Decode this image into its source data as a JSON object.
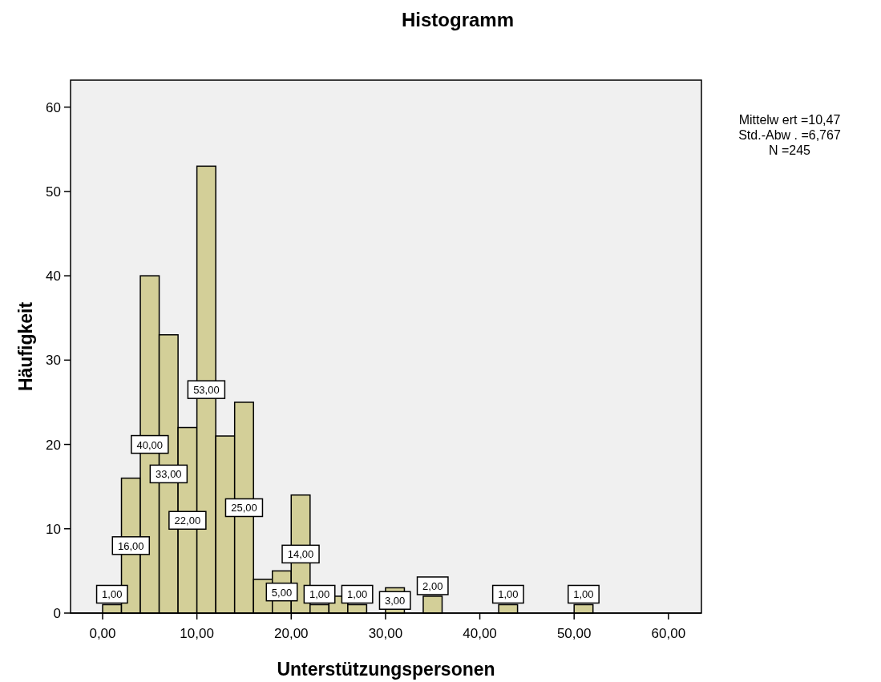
{
  "chart_data": {
    "type": "histogram",
    "title": "Histogramm",
    "xlabel": "Unterstützungspersonen",
    "ylabel": "Häufigkeit",
    "annotations": [
      "Mittelw ert =10,47",
      "Std.-Abw . =6,767",
      "N =245"
    ],
    "bins": [
      0,
      2,
      4,
      6,
      8,
      10,
      12,
      14,
      16,
      18,
      20,
      22,
      24,
      26,
      28,
      30,
      32,
      34,
      36,
      38,
      40,
      42,
      44,
      46,
      48,
      50,
      52
    ],
    "values": [
      1,
      16,
      40,
      33,
      22,
      53,
      21,
      25,
      4,
      5,
      14,
      1,
      2,
      1,
      0,
      3,
      0,
      2,
      0,
      0,
      0,
      1,
      0,
      0,
      0,
      1
    ],
    "value_labels": [
      "1,00",
      "16,00",
      "40,00",
      "33,00",
      "22,00",
      "53,00",
      null,
      "25,00",
      null,
      "5,00",
      "14,00",
      "1,00",
      null,
      "1,00",
      null,
      "3,00",
      null,
      "2,00",
      null,
      null,
      null,
      "1,00",
      null,
      null,
      null,
      "1,00"
    ],
    "color": "#d3cf98",
    "xlim": [
      -3.4,
      63.5
    ],
    "ylim": [
      0,
      63.2
    ],
    "xticks": [
      {
        "value": 0,
        "label": "0,00"
      },
      {
        "value": 10,
        "label": "10,00"
      },
      {
        "value": 20,
        "label": "20,00"
      },
      {
        "value": 30,
        "label": "30,00"
      },
      {
        "value": 40,
        "label": "40,00"
      },
      {
        "value": 50,
        "label": "50,00"
      },
      {
        "value": 60,
        "label": "60,00"
      }
    ],
    "yticks": [
      0,
      10,
      20,
      30,
      40,
      50,
      60
    ],
    "grid": false
  }
}
